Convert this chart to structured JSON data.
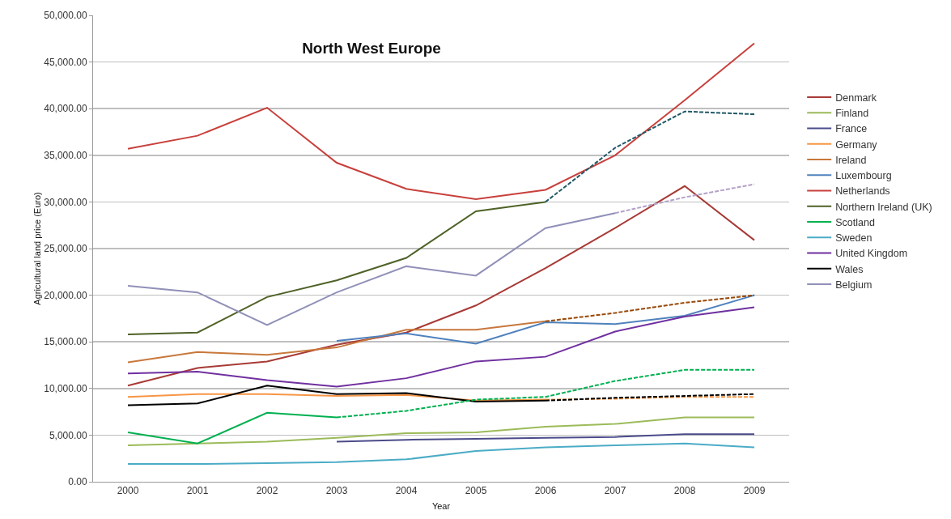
{
  "chart_data": {
    "type": "line",
    "title": "North West Europe",
    "xlabel": "Year",
    "ylabel": "Agricultural land price (Euro)",
    "categories": [
      "2000",
      "2001",
      "2002",
      "2003",
      "2004",
      "2005",
      "2006",
      "2007",
      "2008",
      "2009"
    ],
    "ylim": [
      0,
      50000
    ],
    "yticks": [
      {
        "value": 0,
        "label": "0.00"
      },
      {
        "value": 5000,
        "label": "5,000.00"
      },
      {
        "value": 10000,
        "label": "10,000.00"
      },
      {
        "value": 15000,
        "label": "15,000.00"
      },
      {
        "value": 20000,
        "label": "20,000.00"
      },
      {
        "value": 25000,
        "label": "25,000.00"
      },
      {
        "value": 30000,
        "label": "30,000.00"
      },
      {
        "value": 35000,
        "label": "35,000.00"
      },
      {
        "value": 40000,
        "label": "40,000.00"
      },
      {
        "value": 45000,
        "label": "45,000.00"
      },
      {
        "value": 50000,
        "label": "50,000.00"
      }
    ],
    "grid": "y",
    "legend": "right",
    "marker": "none",
    "line_style": "solid",
    "series": [
      {
        "name": "Denmark",
        "color": "#a83a36",
        "values": [
          10300,
          12200,
          12900,
          14700,
          16000,
          18900,
          22900,
          27200,
          31700,
          25900
        ]
      },
      {
        "name": "Finland",
        "color": "#9bbb59",
        "values": [
          3900,
          4100,
          4300,
          4700,
          5200,
          5300,
          5900,
          6200,
          6900,
          6900
        ]
      },
      {
        "name": "France",
        "color": "#4b4b8b",
        "values": [
          null,
          null,
          null,
          4300,
          4500,
          4600,
          4700,
          4800,
          5100,
          5100
        ]
      },
      {
        "name": "Germany",
        "color": "#f79646",
        "values": [
          9100,
          9400,
          9400,
          9200,
          9300,
          8700,
          8800,
          null,
          null,
          null
        ]
      },
      {
        "name": "Ireland",
        "color": "#c8783c",
        "values": [
          12800,
          13900,
          13600,
          14400,
          16300,
          16300,
          17200,
          null,
          null,
          null
        ]
      },
      {
        "name": "Luxembourg",
        "color": "#4f81bd",
        "values": [
          null,
          null,
          null,
          15100,
          15900,
          14800,
          17100,
          16900,
          17800,
          20000
        ]
      },
      {
        "name": "Netherlands",
        "color": "#c8403c",
        "values": [
          35700,
          37100,
          40100,
          34200,
          31400,
          30300,
          31300,
          35000,
          40900,
          47000
        ]
      },
      {
        "name": "Northern Ireland (UK)",
        "color": "#4f6228",
        "values": [
          15800,
          16000,
          19800,
          21600,
          24000,
          29000,
          30000,
          null,
          null,
          null
        ]
      },
      {
        "name": "Scotland",
        "color": "#00b050",
        "values": [
          5300,
          4100,
          7400,
          6900,
          null,
          null,
          null,
          null,
          null,
          null
        ]
      },
      {
        "name": "Sweden",
        "color": "#4bacc6",
        "values": [
          1900,
          1900,
          2000,
          2100,
          2400,
          3300,
          3700,
          3900,
          4100,
          3700
        ]
      },
      {
        "name": "United Kingdom",
        "color": "#7030a0",
        "values": [
          11600,
          11800,
          10900,
          10200,
          11100,
          12900,
          13400,
          16100,
          17700,
          18700
        ]
      },
      {
        "name": "Wales",
        "color": "#000000",
        "values": [
          8200,
          8400,
          10300,
          9400,
          9500,
          8600,
          8700,
          null,
          null,
          null
        ]
      },
      {
        "name": "Belgium",
        "color": "#9090b8",
        "values": [
          21000,
          20300,
          16800,
          20300,
          23100,
          22100,
          27200,
          28800,
          null,
          null
        ]
      },
      {
        "color": "#f79646",
        "line_style": "dashed",
        "values": [
          null,
          null,
          null,
          null,
          null,
          null,
          8800,
          8900,
          9100,
          9100
        ]
      },
      {
        "color": "#984807",
        "line_style": "dashed",
        "values": [
          null,
          null,
          null,
          null,
          null,
          null,
          17200,
          18100,
          19200,
          20000
        ]
      },
      {
        "color": "#215967",
        "line_style": "dashed",
        "values": [
          null,
          null,
          null,
          null,
          null,
          null,
          30000,
          35800,
          39700,
          39400
        ]
      },
      {
        "color": "#00b050",
        "line_style": "dashed",
        "values": [
          null,
          null,
          null,
          6900,
          7600,
          8800,
          9100,
          10800,
          12000,
          12000
        ]
      },
      {
        "color": "#000000",
        "line_style": "dashed",
        "values": [
          null,
          null,
          null,
          null,
          null,
          null,
          8700,
          9000,
          9200,
          9400
        ]
      },
      {
        "color": "#b3a2c7",
        "line_style": "dashed",
        "values": [
          null,
          null,
          null,
          null,
          null,
          null,
          null,
          28800,
          30500,
          31900
        ]
      }
    ]
  }
}
